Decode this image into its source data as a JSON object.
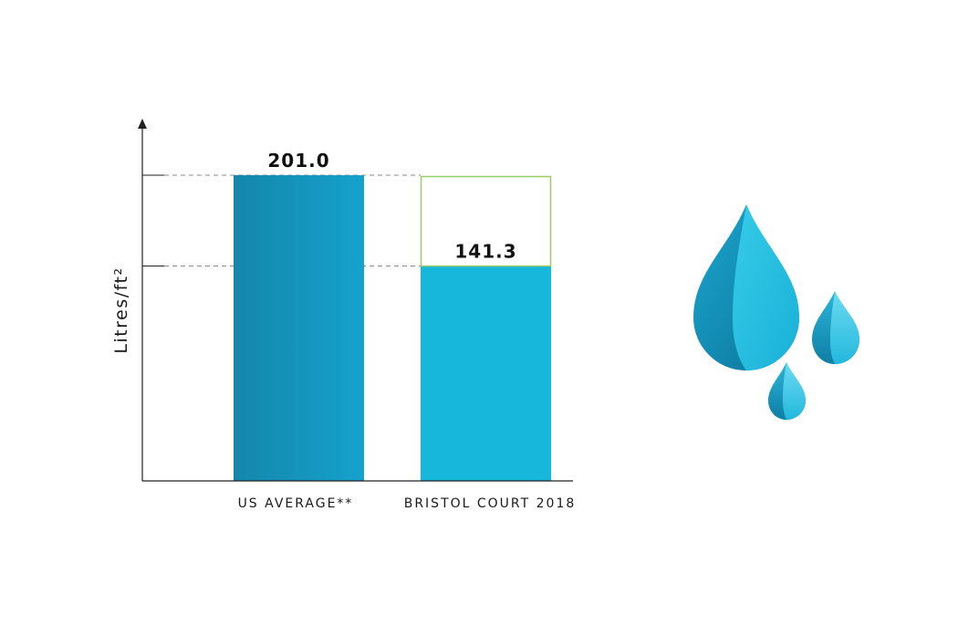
{
  "chart_data": {
    "type": "bar",
    "categories": [
      "US AVERAGE**",
      "BRISTOL COURT 2018"
    ],
    "values": [
      201.0,
      141.3
    ],
    "value_labels": [
      "201.0",
      "141.3"
    ],
    "title": "",
    "xlabel": "",
    "ylabel": "Litres/ft²",
    "ylim": [
      0,
      201.0
    ],
    "grid": false,
    "reference_lines": [
      201.0,
      141.3
    ],
    "legend": "none",
    "colors": {
      "us_average_bar_dark": "#1586ab",
      "us_average_bar_light": "#15a2cd",
      "bristol_bar": "#16b7db",
      "reduction_outline": "#9ccc65",
      "axis": "#222222",
      "dashed_line": "#8a8a8a"
    }
  },
  "decoration": {
    "icon": "water-drops-icon",
    "colors": [
      "#0f7ea4",
      "#23b8dc",
      "#5fd6ef"
    ]
  }
}
